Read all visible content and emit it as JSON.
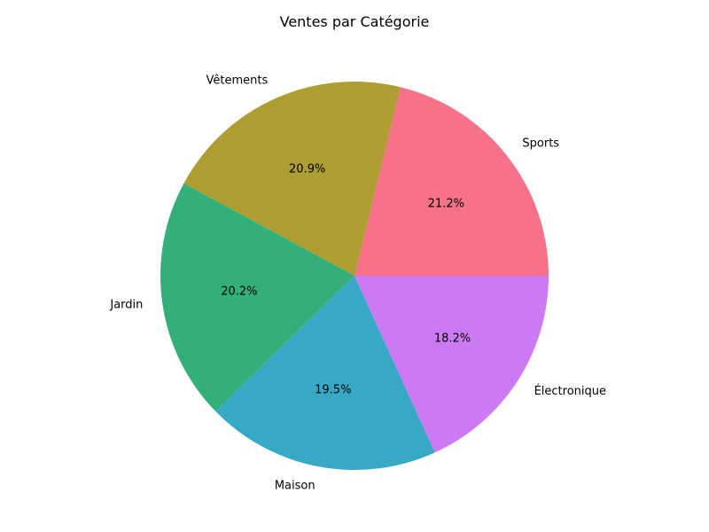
{
  "chart_data": {
    "type": "pie",
    "title": "Ventes par Catégorie",
    "start_angle_deg": 0,
    "direction": "counterclockwise",
    "slices": [
      {
        "label": "Sports",
        "value": 21.2,
        "pct_label": "21.2%",
        "color": "#f77189"
      },
      {
        "label": "Vêtements",
        "value": 20.9,
        "pct_label": "20.9%",
        "color": "#ae9d31"
      },
      {
        "label": "Jardin",
        "value": 20.2,
        "pct_label": "20.2%",
        "color": "#33b07a"
      },
      {
        "label": "Maison",
        "value": 19.5,
        "pct_label": "19.5%",
        "color": "#38a9c5"
      },
      {
        "label": "Électronique",
        "value": 18.2,
        "pct_label": "18.2%",
        "color": "#cc7af4"
      }
    ]
  }
}
